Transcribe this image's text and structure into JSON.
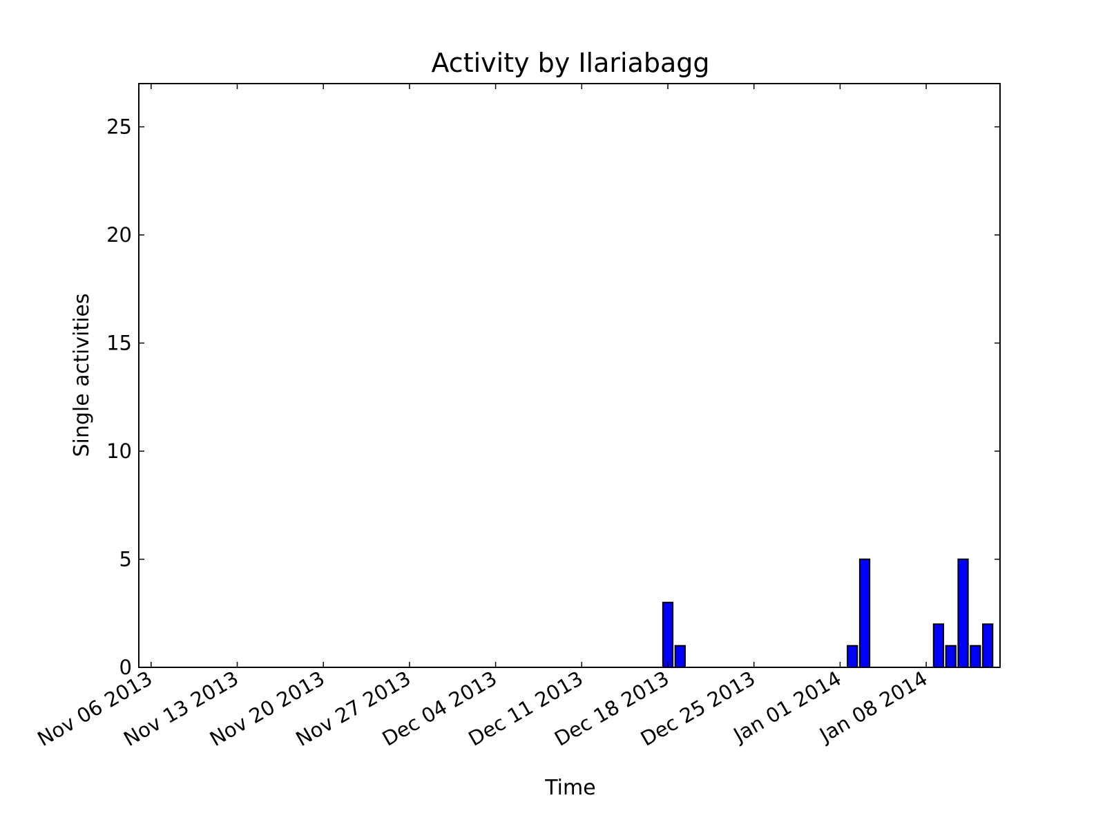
{
  "chart_data": {
    "type": "bar",
    "title": "Activity by Ilariabagg",
    "xlabel": "Time",
    "ylabel": "Single activities",
    "x_axis": {
      "type": "date",
      "range": [
        "2013-11-05",
        "2014-01-14"
      ],
      "ticks": [
        {
          "date": "2013-11-06",
          "label": "Nov 06 2013"
        },
        {
          "date": "2013-11-13",
          "label": "Nov 13 2013"
        },
        {
          "date": "2013-11-20",
          "label": "Nov 20 2013"
        },
        {
          "date": "2013-11-27",
          "label": "Nov 27 2013"
        },
        {
          "date": "2013-12-04",
          "label": "Dec 04 2013"
        },
        {
          "date": "2013-12-11",
          "label": "Dec 11 2013"
        },
        {
          "date": "2013-12-18",
          "label": "Dec 18 2013"
        },
        {
          "date": "2013-12-25",
          "label": "Dec 25 2013"
        },
        {
          "date": "2014-01-01",
          "label": "Jan 01 2014"
        },
        {
          "date": "2014-01-08",
          "label": "Jan 08 2014"
        }
      ]
    },
    "y_axis": {
      "range": [
        0,
        27
      ],
      "ticks": [
        0,
        5,
        10,
        15,
        20,
        25
      ]
    },
    "bars": [
      {
        "date": "2013-12-18",
        "value": 3
      },
      {
        "date": "2013-12-19",
        "value": 1
      },
      {
        "date": "2014-01-02",
        "value": 1
      },
      {
        "date": "2014-01-03",
        "value": 5
      },
      {
        "date": "2014-01-09",
        "value": 2
      },
      {
        "date": "2014-01-10",
        "value": 1
      },
      {
        "date": "2014-01-11",
        "value": 5
      },
      {
        "date": "2014-01-12",
        "value": 1
      },
      {
        "date": "2014-01-13",
        "value": 2
      }
    ],
    "bar_color": "#0000ff",
    "edge_color": "#000000",
    "grid": false,
    "legend": "none"
  }
}
